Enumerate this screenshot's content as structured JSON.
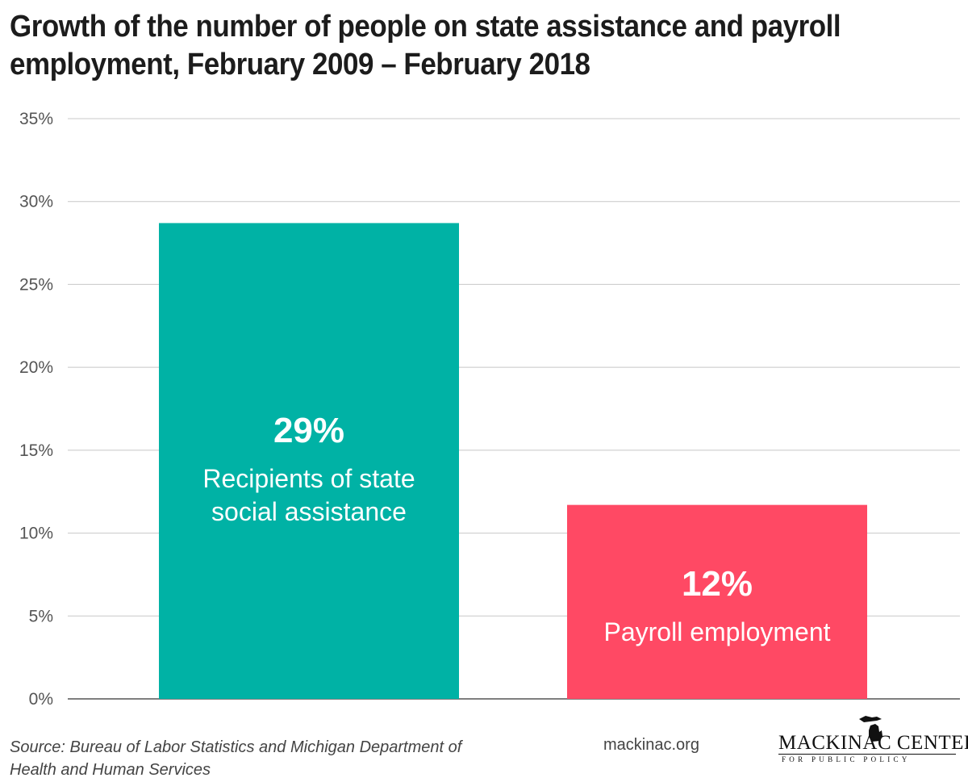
{
  "title": "Growth of the number of people on state assistance and payroll employment, February 2009 – February 2018",
  "chart_data": {
    "type": "bar",
    "title": "Growth of the number of people on state assistance and payroll employment, February 2009 – February 2018",
    "xlabel": "",
    "ylabel": "",
    "ylim": [
      0,
      35
    ],
    "yticks": [
      0,
      5,
      10,
      15,
      20,
      25,
      30,
      35
    ],
    "ytick_labels": [
      "0%",
      "5%",
      "10%",
      "15%",
      "20%",
      "25%",
      "30%",
      "35%"
    ],
    "grid": true,
    "categories": [
      "Recipients of state social assistance",
      "Payroll employment"
    ],
    "values": [
      28.7,
      11.7
    ],
    "bars": [
      {
        "value": 28.7,
        "value_label": "29%",
        "label_lines": [
          "Recipients of state",
          "social assistance"
        ],
        "color": "#00b2a5"
      },
      {
        "value": 11.7,
        "value_label": "12%",
        "label_lines": [
          "Payroll employment"
        ],
        "color": "#ff4964"
      }
    ]
  },
  "footer": {
    "source_line1": "Source: Bureau of Labor Statistics and Michigan Department of",
    "source_line2": "Health and Human Services",
    "website": "mackinac.org",
    "logo_main": "MACKINAC CENTER",
    "logo_sub": "FOR PUBLIC POLICY"
  },
  "colors": {
    "teal": "#00b2a5",
    "red": "#ff4964",
    "gridline": "#c8c8c8",
    "axis_text": "#555555"
  },
  "icons": {
    "logo": "michigan-map-icon"
  }
}
